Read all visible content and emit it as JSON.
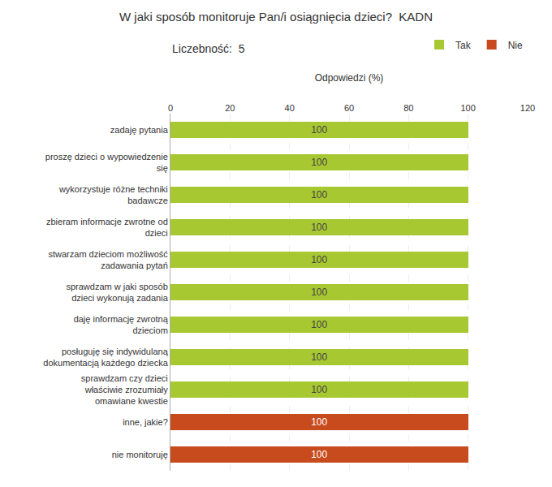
{
  "chart_data": {
    "type": "bar",
    "orientation": "horizontal",
    "stacked": true,
    "title": "W jaki sposób monitoruje Pan/i osiągnięcia dzieci?  KADN",
    "subtitle": "Liczebność:  5",
    "xlabel": "Odpowiedzi (%)",
    "categories": [
      "zadaję pytania",
      "proszę dzieci o wypowiedzenie\nsię",
      "wykorzystuje różne techniki\nbadawcze",
      "zbieram informacje zwrotne od\ndzieci",
      "stwarzam dzieciom możliwość\nzadawania pytań",
      "sprawdzam w jaki sposób\ndzieci wykonują zadania",
      "daję informację zwrotną\ndzieciom",
      "posługuję się indywidulaną\ndokumentacją każdego dziecka",
      "sprawdzam czy dzieci\nwłaściwie zrozumiały\nomawiane kwestie",
      "inne, jakie?",
      "nie monitoruję"
    ],
    "series": [
      {
        "name": "Tak",
        "color": "#a8c832",
        "values": [
          100,
          100,
          100,
          100,
          100,
          100,
          100,
          100,
          100,
          0,
          0
        ]
      },
      {
        "name": "Nie",
        "color": "#c84b1e",
        "values": [
          0,
          0,
          0,
          0,
          0,
          0,
          0,
          0,
          0,
          100,
          100
        ]
      }
    ],
    "xlim": [
      0,
      120
    ],
    "xticks": [
      0,
      20,
      40,
      60,
      80,
      100,
      120
    ],
    "grid": true,
    "legend": "upper right",
    "data_labels": true
  }
}
